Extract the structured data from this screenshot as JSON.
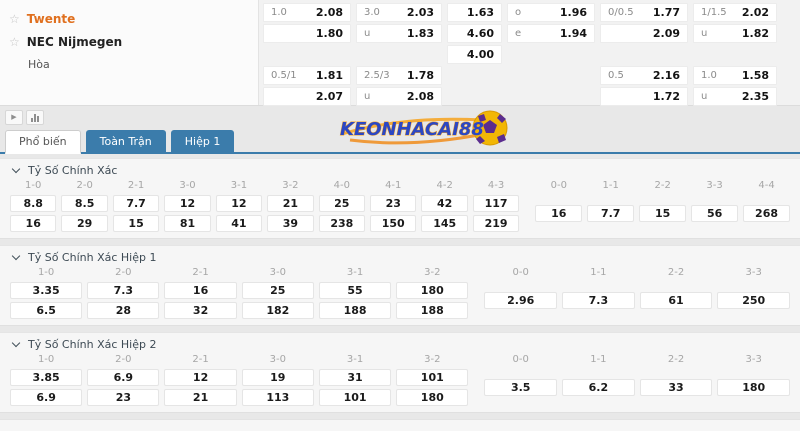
{
  "match": {
    "home_team": "Twente",
    "away_team": "NEC Nijmegen",
    "draw_label": "Hòa"
  },
  "top_odds": {
    "columns": [
      {
        "cells": [
          [
            "1.0",
            "2.08"
          ],
          [
            "",
            "1.80"
          ],
          null,
          [
            "0.5/1",
            "1.81"
          ],
          [
            "",
            "2.07"
          ]
        ]
      },
      {
        "cells": [
          [
            "3.0",
            "2.03"
          ],
          [
            "u",
            "1.83"
          ],
          null,
          [
            "2.5/3",
            "1.78"
          ],
          [
            "u",
            "2.08"
          ]
        ]
      },
      {
        "cells": [
          [
            "",
            "1.63"
          ],
          [
            "",
            "4.60"
          ],
          [
            "",
            "4.00"
          ],
          null,
          null
        ]
      },
      {
        "cells": [
          [
            "o",
            "1.96"
          ],
          [
            "e",
            "1.94"
          ],
          null,
          null,
          null
        ]
      },
      {
        "cells": [
          [
            "0/0.5",
            "1.77"
          ],
          [
            "",
            "2.09"
          ],
          null,
          [
            "0.5",
            "2.16"
          ],
          [
            "",
            "1.72"
          ]
        ]
      },
      {
        "cells": [
          [
            "1/1.5",
            "2.02"
          ],
          [
            "u",
            "1.82"
          ],
          null,
          [
            "1.0",
            "1.58"
          ],
          [
            "u",
            "2.35"
          ]
        ]
      }
    ]
  },
  "toolbar": {
    "play_icon": "▶",
    "chart_icon": "bar-chart"
  },
  "tabs": [
    {
      "label": "Phổ biến",
      "active": true
    },
    {
      "label": "Toàn Trận",
      "active": false
    },
    {
      "label": "Hiệp 1",
      "active": false
    }
  ],
  "logo": {
    "text": "KEONHACAI88"
  },
  "sections": [
    {
      "title": "Tỷ Số Chính Xác",
      "score_columns": [
        "1-0",
        "2-0",
        "2-1",
        "3-0",
        "3-1",
        "3-2",
        "4-0",
        "4-1",
        "4-2",
        "4-3"
      ],
      "home_odds": [
        "8.8",
        "8.5",
        "7.7",
        "12",
        "12",
        "21",
        "25",
        "23",
        "42",
        "117"
      ],
      "away_odds": [
        "16",
        "29",
        "15",
        "81",
        "41",
        "39",
        "238",
        "150",
        "145",
        "219"
      ],
      "draw_columns": [
        "0-0",
        "1-1",
        "2-2",
        "3-3",
        "4-4"
      ],
      "draw_odds": [
        "16",
        "7.7",
        "15",
        "56",
        "268"
      ]
    },
    {
      "title": "Tỷ Số Chính Xác Hiệp 1",
      "score_columns": [
        "1-0",
        "2-0",
        "2-1",
        "3-0",
        "3-1",
        "3-2"
      ],
      "home_odds": [
        "3.35",
        "7.3",
        "16",
        "25",
        "55",
        "180"
      ],
      "away_odds": [
        "6.5",
        "28",
        "32",
        "182",
        "188",
        "188"
      ],
      "draw_columns": [
        "0-0",
        "1-1",
        "2-2",
        "3-3"
      ],
      "draw_odds": [
        "2.96",
        "7.3",
        "61",
        "250"
      ]
    },
    {
      "title": "Tỷ Số Chính Xác Hiệp 2",
      "score_columns": [
        "1-0",
        "2-0",
        "2-1",
        "3-0",
        "3-1",
        "3-2"
      ],
      "home_odds": [
        "3.85",
        "6.9",
        "12",
        "19",
        "31",
        "101"
      ],
      "away_odds": [
        "6.9",
        "23",
        "21",
        "113",
        "101",
        "180"
      ],
      "draw_columns": [
        "0-0",
        "1-1",
        "2-2",
        "3-3"
      ],
      "draw_odds": [
        "3.5",
        "6.2",
        "33",
        "180"
      ]
    }
  ],
  "colors": {
    "accent_blue": "#3b7cab",
    "home_team_orange": "#e0701f",
    "logo_blue": "#2b47c4",
    "logo_orange": "#f6a21d",
    "ball_yellow": "#f2b705",
    "ball_purple": "#5b2d8f"
  }
}
